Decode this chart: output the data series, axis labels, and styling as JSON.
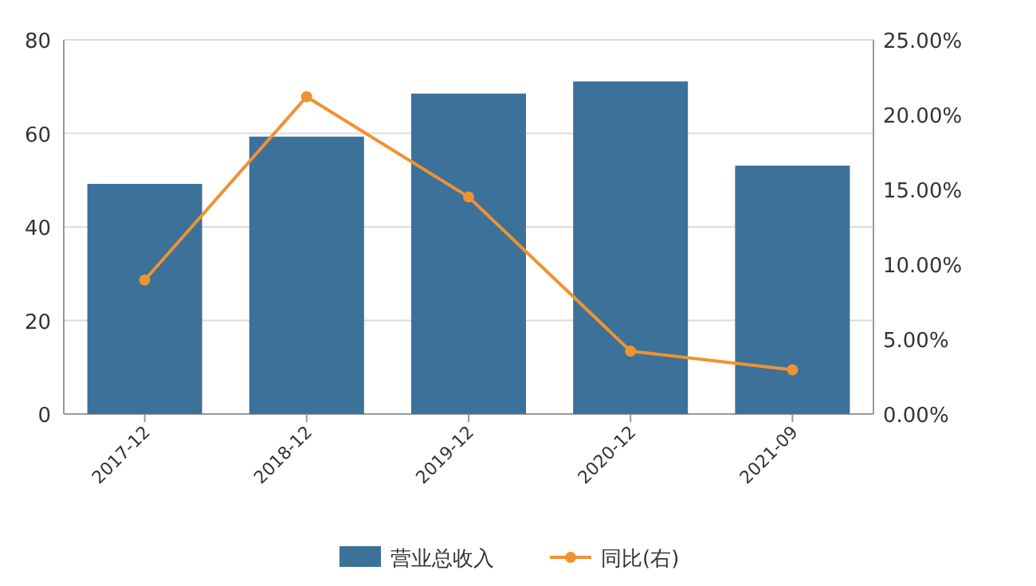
{
  "chart_data": {
    "type": "bar",
    "categories": [
      "2017-12",
      "2018-12",
      "2019-12",
      "2020-12",
      "2021-09"
    ],
    "series": [
      {
        "name": "营业总收入",
        "color": "#3c7199",
        "values": [
          49.2,
          59.3,
          68.5,
          71.1,
          53.1
        ]
      },
      {
        "name": "同比(右)",
        "type": "line",
        "axis": "y2",
        "color": "#ef9234",
        "values": [
          8.95,
          21.2,
          14.5,
          4.2,
          2.95
        ]
      }
    ],
    "ylim": [
      0,
      80
    ],
    "yticks": [
      0,
      20,
      40,
      60,
      80
    ],
    "y2lim": [
      0,
      25
    ],
    "y2ticks": [
      {
        "value": 0,
        "label": "0.00%"
      },
      {
        "value": 5,
        "label": "5.00%"
      },
      {
        "value": 10,
        "label": "10.00%"
      },
      {
        "value": 15,
        "label": "15.00%"
      },
      {
        "value": 20,
        "label": "20.00%"
      },
      {
        "value": 25,
        "label": "25.00%"
      }
    ],
    "grid": "y",
    "legend": "bottom",
    "marker": "circle"
  }
}
